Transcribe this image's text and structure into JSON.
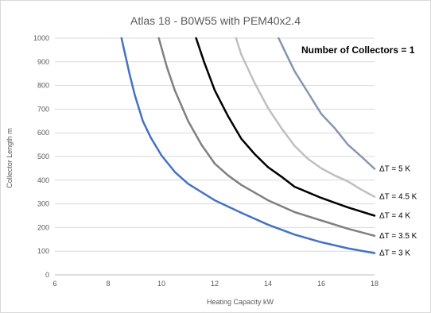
{
  "chart_data": {
    "type": "line",
    "title": "Atlas 18 - B0W55 with PEM40x2.4",
    "xlabel": "Heating Capacity  kW",
    "ylabel": "Collector Length  m",
    "xlim": [
      6,
      18
    ],
    "ylim": [
      0,
      1000
    ],
    "xticks": [
      6,
      8,
      10,
      12,
      14,
      16,
      18
    ],
    "yticks": [
      0,
      100,
      200,
      300,
      400,
      500,
      600,
      700,
      800,
      900,
      1000
    ],
    "grid": "horizontal",
    "annotation": "Number of Collectors = 1",
    "series": [
      {
        "name": "ΔT = 3 K",
        "color": "#4472c4",
        "points": [
          [
            8.5,
            1000
          ],
          [
            8.8,
            850
          ],
          [
            9.0,
            760
          ],
          [
            9.3,
            650
          ],
          [
            9.6,
            580
          ],
          [
            10.0,
            505
          ],
          [
            10.5,
            435
          ],
          [
            11.0,
            385
          ],
          [
            12.0,
            315
          ],
          [
            13.0,
            262
          ],
          [
            14.0,
            212
          ],
          [
            15.0,
            170
          ],
          [
            16.0,
            138
          ],
          [
            17.0,
            112
          ],
          [
            18.0,
            92
          ]
        ]
      },
      {
        "name": "ΔT = 3.5 K",
        "color": "#808080",
        "points": [
          [
            9.9,
            1000
          ],
          [
            10.2,
            880
          ],
          [
            10.5,
            780
          ],
          [
            11.0,
            650
          ],
          [
            11.5,
            550
          ],
          [
            12.0,
            470
          ],
          [
            12.5,
            420
          ],
          [
            13.0,
            380
          ],
          [
            14.0,
            315
          ],
          [
            15.0,
            265
          ],
          [
            16.0,
            230
          ],
          [
            17.0,
            195
          ],
          [
            18.0,
            165
          ]
        ]
      },
      {
        "name": "ΔT = 4 K",
        "color": "#000000",
        "points": [
          [
            11.3,
            1000
          ],
          [
            11.6,
            900
          ],
          [
            12.0,
            780
          ],
          [
            12.5,
            670
          ],
          [
            13.0,
            575
          ],
          [
            13.5,
            510
          ],
          [
            14.0,
            455
          ],
          [
            14.5,
            415
          ],
          [
            15.0,
            372
          ],
          [
            16.0,
            325
          ],
          [
            17.0,
            285
          ],
          [
            18.0,
            250
          ]
        ]
      },
      {
        "name": "ΔT = 4.5 K",
        "color": "#bfbfbf",
        "points": [
          [
            12.8,
            1000
          ],
          [
            13.0,
            930
          ],
          [
            13.5,
            810
          ],
          [
            14.0,
            705
          ],
          [
            14.5,
            620
          ],
          [
            15.0,
            545
          ],
          [
            15.5,
            490
          ],
          [
            16.0,
            450
          ],
          [
            16.5,
            420
          ],
          [
            17.0,
            395
          ],
          [
            17.5,
            360
          ],
          [
            18.0,
            330
          ]
        ]
      },
      {
        "name": "ΔT = 5 K",
        "color": "#8497b0",
        "points": [
          [
            14.4,
            1000
          ],
          [
            14.7,
            930
          ],
          [
            15.0,
            860
          ],
          [
            15.5,
            770
          ],
          [
            16.0,
            680
          ],
          [
            16.5,
            620
          ],
          [
            17.0,
            550
          ],
          [
            17.5,
            500
          ],
          [
            18.0,
            448
          ]
        ]
      }
    ]
  }
}
